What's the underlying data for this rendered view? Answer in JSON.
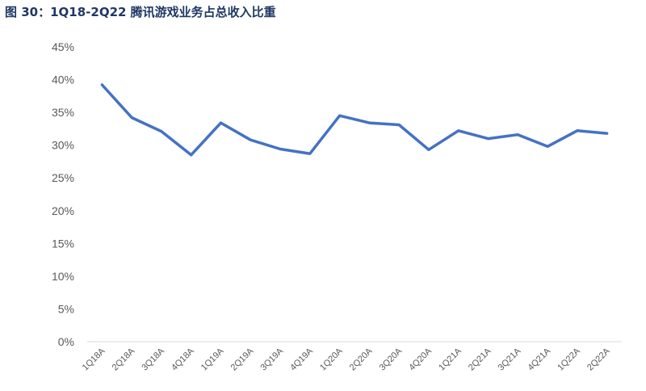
{
  "title": "图 30：1Q18-2Q22 腾讯游戏业务占总收入比重",
  "chart_data": {
    "type": "line",
    "title": "图 30：1Q18-2Q22 腾讯游戏业务占总收入比重",
    "xlabel": "",
    "ylabel": "",
    "ylim": [
      0,
      45
    ],
    "yticks": [
      "0%",
      "5%",
      "10%",
      "15%",
      "20%",
      "25%",
      "30%",
      "35%",
      "40%",
      "45%"
    ],
    "categories": [
      "1Q18A",
      "2Q18A",
      "3Q18A",
      "4Q18A",
      "1Q19A",
      "2Q19A",
      "3Q19A",
      "4Q19A",
      "1Q20A",
      "2Q20A",
      "3Q20A",
      "4Q20A",
      "1Q21A",
      "2Q21A",
      "3Q21A",
      "4Q21A",
      "1Q22A",
      "2Q22A"
    ],
    "series": [
      {
        "values": [
          39.2,
          34.2,
          32.1,
          28.5,
          33.4,
          30.8,
          29.4,
          28.7,
          34.5,
          33.4,
          33.1,
          29.3,
          32.2,
          31.0,
          31.6,
          29.8,
          32.2,
          31.8
        ]
      }
    ],
    "grid": false,
    "line_color": "#4472c4"
  }
}
